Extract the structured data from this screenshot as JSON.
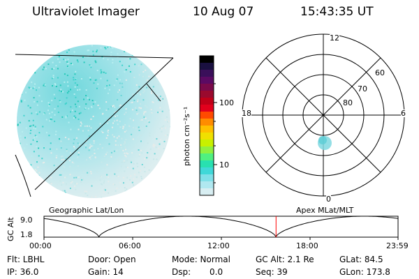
{
  "header": {
    "title": "Ultraviolet Imager",
    "date": "10 Aug 07",
    "time": "15:43:35 UT"
  },
  "colorbar": {
    "label": "photon cm⁻²s⁻¹",
    "ticks": [
      "100",
      "10"
    ],
    "colors": [
      "#000000",
      "#1a1040",
      "#3a0f5a",
      "#5b0a63",
      "#7a0a4a",
      "#9a0a2e",
      "#c00018",
      "#e2001c",
      "#ff4a00",
      "#ff8c00",
      "#ffc000",
      "#f0e000",
      "#c8f000",
      "#90f040",
      "#50f080",
      "#28e0b0",
      "#40d8d8",
      "#80e0e8",
      "#b0e8f0",
      "#d8eef2"
    ]
  },
  "left_panel": {
    "caption": "Geographic Lat/Lon"
  },
  "polar_plot": {
    "caption": "Apex MLat/MLT",
    "mlt_labels": {
      "top": "12",
      "left": "18",
      "right": "6",
      "bottom": "0"
    },
    "lat_labels": [
      "60",
      "70",
      "80"
    ]
  },
  "timeline": {
    "ylabel": "GC Alt",
    "ytick_top": "9.0",
    "ytick_bottom": "1.8",
    "xticks": [
      "00:00",
      "06:00",
      "12:00",
      "18:00",
      "23:59"
    ],
    "marker_color": "#ff0000",
    "current_time_hours": 15.73
  },
  "info": {
    "flt": "Flt: LBHL",
    "ip": "IP: 36.0",
    "door": "Door: Open",
    "gain": "Gain: 14",
    "mode": "Mode: Normal",
    "dsp_label": "Dsp:",
    "dsp_value": "0.0",
    "gc_alt": "GC Alt: 2.1 Re",
    "seq": "Seq: 39",
    "glat": "GLat:  84.5",
    "glon": "GLon: 173.8"
  }
}
